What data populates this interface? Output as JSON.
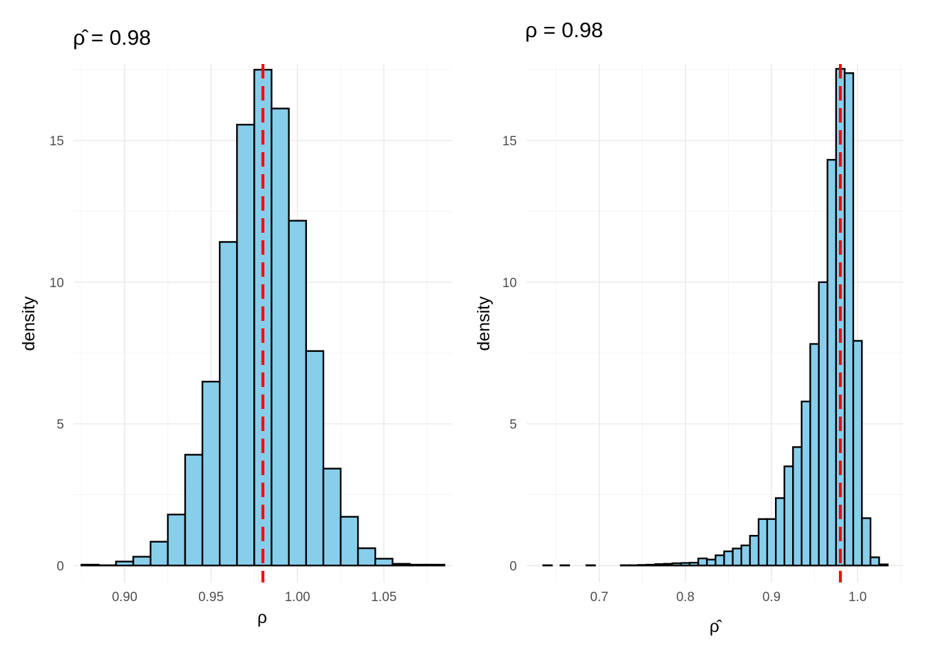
{
  "chart_data": [
    {
      "type": "histogram",
      "title": "ρ̂ = 0.98",
      "xlabel": "ρ",
      "ylabel": "density",
      "xlim": [
        0.8705,
        1.0895
      ],
      "ylim": [
        -0.6,
        17.7
      ],
      "x_major_ticks": [
        0.9,
        0.95,
        1.0,
        1.05
      ],
      "x_tick_labels": [
        "0.90",
        "0.95",
        "1.00",
        "1.05"
      ],
      "x_minor_ticks": [
        0.875,
        0.925,
        0.975,
        1.025,
        1.075
      ],
      "y_major_ticks": [
        0,
        5,
        10,
        15
      ],
      "y_tick_labels": [
        "0",
        "5",
        "10",
        "15"
      ],
      "y_minor_ticks": [
        2.5,
        7.5,
        12.5,
        17.5
      ],
      "grid": true,
      "bar_fill": "#87ceeb",
      "bar_outline": "#000000",
      "bin_start": 0.875,
      "bin_width": 0.01,
      "densities": [
        0.03,
        0.01,
        0.14,
        0.31,
        0.84,
        1.8,
        3.91,
        6.49,
        11.42,
        15.56,
        17.5,
        16.13,
        12.17,
        7.57,
        3.42,
        1.72,
        0.61,
        0.24,
        0.06,
        0.03,
        0.03
      ],
      "reference_line": {
        "x": 0.98,
        "color": "#ff0000",
        "style": "dashed"
      }
    },
    {
      "type": "histogram",
      "title": "ρ = 0.98",
      "xlabel": "ρ̂",
      "ylabel": "density",
      "xlim": [
        0.6155,
        1.0535
      ],
      "ylim": [
        -0.6,
        17.7
      ],
      "x_major_ticks": [
        0.7,
        0.8,
        0.9,
        1.0
      ],
      "x_tick_labels": [
        "0.7",
        "0.8",
        "0.9",
        "1.0"
      ],
      "x_minor_ticks": [
        0.65,
        0.75,
        0.85,
        0.95,
        1.05
      ],
      "y_major_ticks": [
        0,
        5,
        10,
        15
      ],
      "y_tick_labels": [
        "0",
        "5",
        "10",
        "15"
      ],
      "y_minor_ticks": [
        2.5,
        7.5,
        12.5,
        17.5
      ],
      "grid": true,
      "bar_fill": "#87ceeb",
      "bar_outline": "#000000",
      "bin_start": 0.635,
      "bin_width": 0.01,
      "densities": [
        0.01,
        0.0,
        0.01,
        0.0,
        0.0,
        0.01,
        0.0,
        0.0,
        0.0,
        0.01,
        0.01,
        0.02,
        0.03,
        0.05,
        0.06,
        0.08,
        0.09,
        0.1,
        0.25,
        0.21,
        0.36,
        0.5,
        0.6,
        0.71,
        1.05,
        1.64,
        1.64,
        2.38,
        3.5,
        4.18,
        5.79,
        7.82,
        10.0,
        14.32,
        17.53,
        17.38,
        7.93,
        1.67,
        0.29,
        0.04
      ],
      "reference_line": {
        "x": 0.98,
        "color": "#ff0000",
        "style": "dashed"
      }
    }
  ]
}
